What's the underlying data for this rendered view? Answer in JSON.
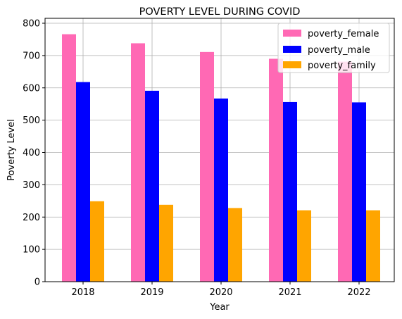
{
  "chart_data": {
    "type": "bar",
    "title": "POVERTY LEVEL DURING COVID",
    "xlabel": "Year",
    "ylabel": "Poverty Level",
    "categories": [
      "2018",
      "2019",
      "2020",
      "2021",
      "2022"
    ],
    "series": [
      {
        "name": "poverty_female",
        "color": "#ff69b4",
        "values": [
          766,
          738,
          711,
          690,
          681
        ]
      },
      {
        "name": "poverty_male",
        "color": "#0000ff",
        "values": [
          618,
          591,
          567,
          556,
          555
        ]
      },
      {
        "name": "poverty_family",
        "color": "#ffa500",
        "values": [
          249,
          238,
          228,
          221,
          221
        ]
      }
    ],
    "ylim": [
      0,
      800
    ],
    "yticks": [
      "0",
      "100",
      "200",
      "300",
      "400",
      "500",
      "600",
      "700",
      "800"
    ],
    "grid": true,
    "legend_position": "top-right"
  }
}
